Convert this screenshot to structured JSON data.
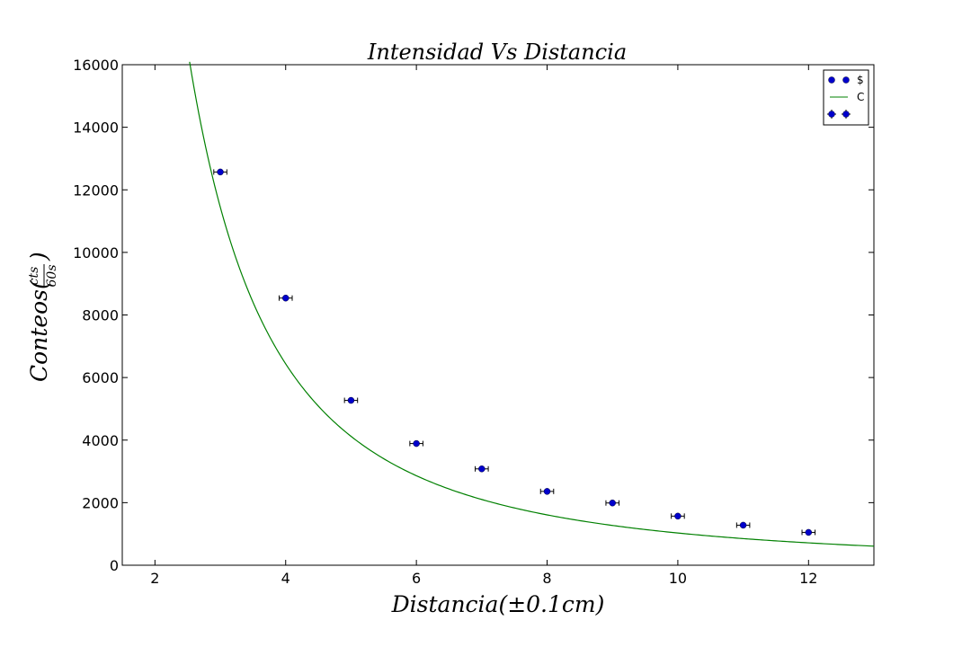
{
  "chart_data": {
    "type": "scatter",
    "title": "Intensidad Vs Distancia",
    "xlabel": "Distancia(±0.1cm)",
    "ylabel": {
      "prefix": "Conteos(",
      "numerator": "cts",
      "denominator": "60s",
      "suffix": ")"
    },
    "xlim": [
      1.5,
      13
    ],
    "ylim": [
      0,
      16000
    ],
    "xticks": [
      2,
      4,
      6,
      8,
      10,
      12
    ],
    "yticks": [
      0,
      2000,
      4000,
      6000,
      8000,
      10000,
      12000,
      14000,
      16000
    ],
    "grid": false,
    "legend_position": "top-right",
    "series": [
      {
        "kind": "points",
        "color": "#0000cc",
        "legend_label": "$",
        "x": [
          3,
          4,
          5,
          6,
          7,
          8,
          9,
          10,
          11,
          12
        ],
        "y": [
          12570,
          8540,
          5270,
          3890,
          3080,
          2360,
          1990,
          1570,
          1280,
          1050
        ],
        "x_error": 0.1
      },
      {
        "kind": "fit",
        "color": "#008000",
        "legend_label": "C",
        "model": "y = a / x^2",
        "a": 103000,
        "x_range": [
          2.53,
          13
        ]
      },
      {
        "kind": "errorbar",
        "color": "#0000cc",
        "legend_label": ""
      }
    ]
  }
}
